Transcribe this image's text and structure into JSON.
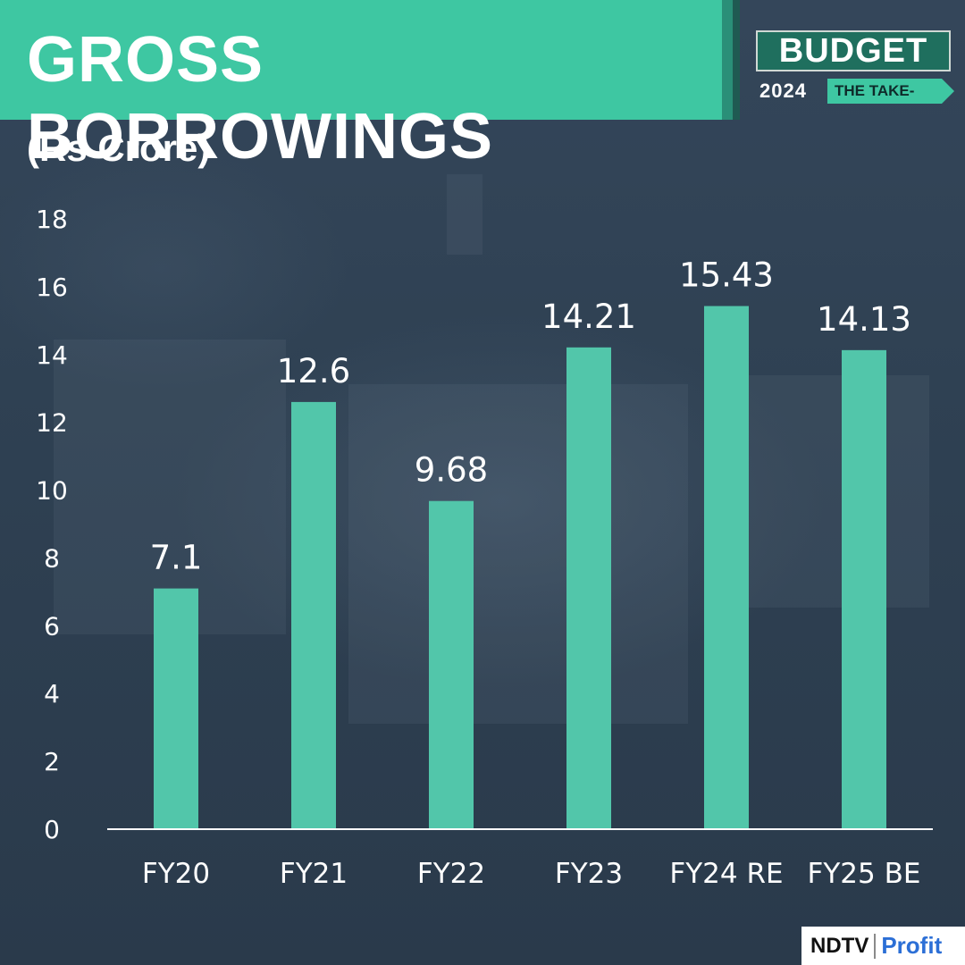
{
  "header": {
    "title": "GROSS BORROWINGS",
    "unit": "(Rs Crore)"
  },
  "badge": {
    "word": "BUDGET",
    "year": "2024",
    "tagline": "THE TAKE-OFF"
  },
  "brand": {
    "name": "NDTV",
    "product": "Profit"
  },
  "colors": {
    "accent": "#3ec7a2",
    "bar": "#52c6aa",
    "background": "#2f4052",
    "text": "#ffffff"
  },
  "chart_data": {
    "type": "bar",
    "title": "GROSS BORROWINGS",
    "subtitle": "(Rs Crore)",
    "categories": [
      "FY20",
      "FY21",
      "FY22",
      "FY23",
      "FY24 RE",
      "FY25 BE"
    ],
    "values": [
      7.1,
      12.6,
      9.68,
      14.21,
      15.43,
      14.13
    ],
    "value_labels": [
      "7.1",
      "12.6",
      "9.68",
      "14.21",
      "15.43",
      "14.13"
    ],
    "yticks": [
      0,
      2,
      4,
      6,
      8,
      10,
      12,
      14,
      16,
      18
    ],
    "ylim": [
      0,
      18
    ],
    "xlabel": "",
    "ylabel": "",
    "grid": false,
    "legend": "none"
  }
}
